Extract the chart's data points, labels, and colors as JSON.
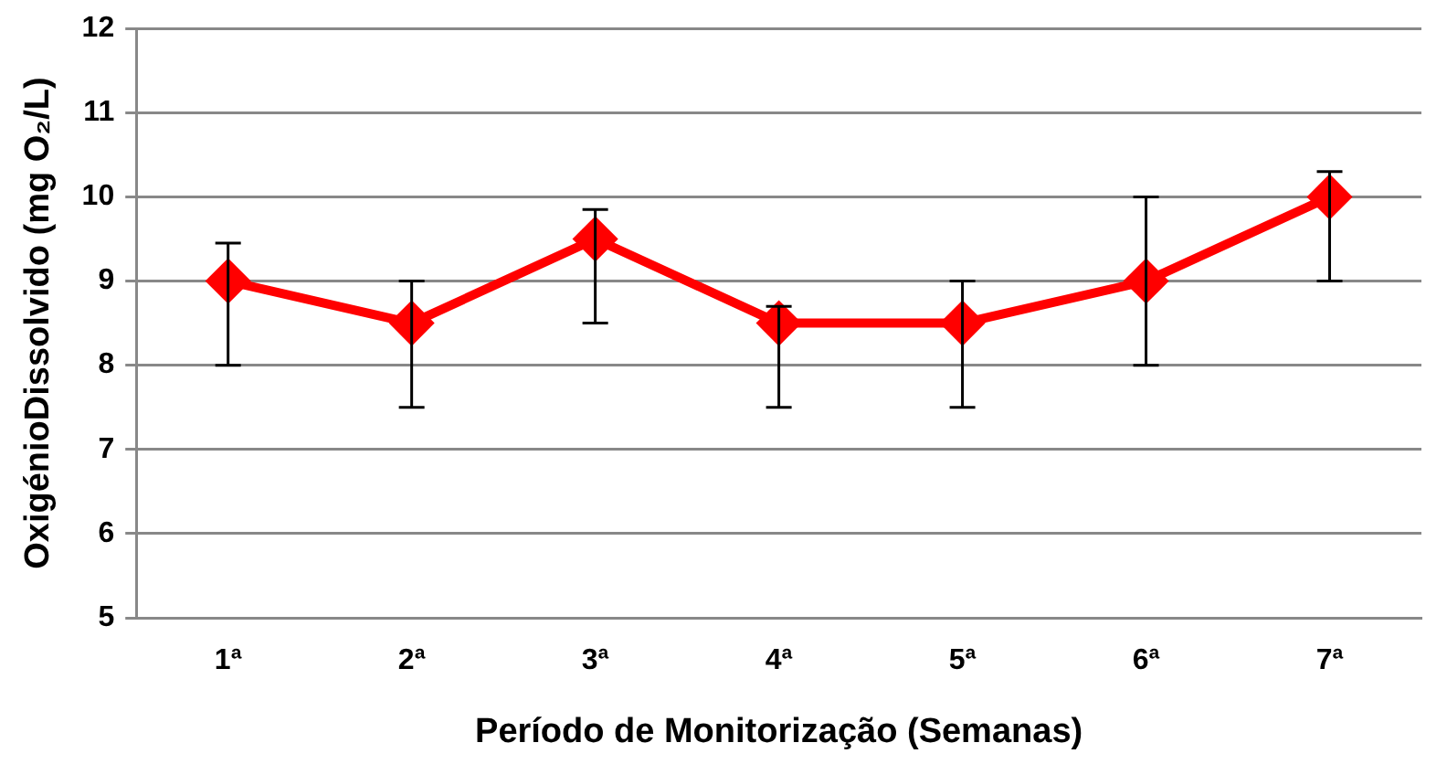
{
  "chart_data": {
    "type": "line",
    "xlabel": "Período de Monitorização (Semanas)",
    "ylabel": "OxigénioDissolvido (mg O₂/L)",
    "categories": [
      "1ª",
      "2ª",
      "3ª",
      "4ª",
      "5ª",
      "6ª",
      "7ª"
    ],
    "series": [
      {
        "color": "#ff0000",
        "values": [
          9,
          8.5,
          9.5,
          8.5,
          8.5,
          9,
          10
        ],
        "errors": [
          [
            8,
            9.45
          ],
          [
            7.5,
            9
          ],
          [
            8.5,
            9.85
          ],
          [
            7.5,
            8.7
          ],
          [
            7.5,
            9
          ],
          [
            8,
            10
          ],
          [
            9,
            10.3
          ]
        ]
      }
    ],
    "ylim": [
      5,
      12
    ],
    "yticks": [
      5,
      6,
      7,
      8,
      9,
      10,
      11,
      12
    ],
    "grid": "y",
    "legend": false,
    "marker": "diamond",
    "line_style": "solid"
  }
}
